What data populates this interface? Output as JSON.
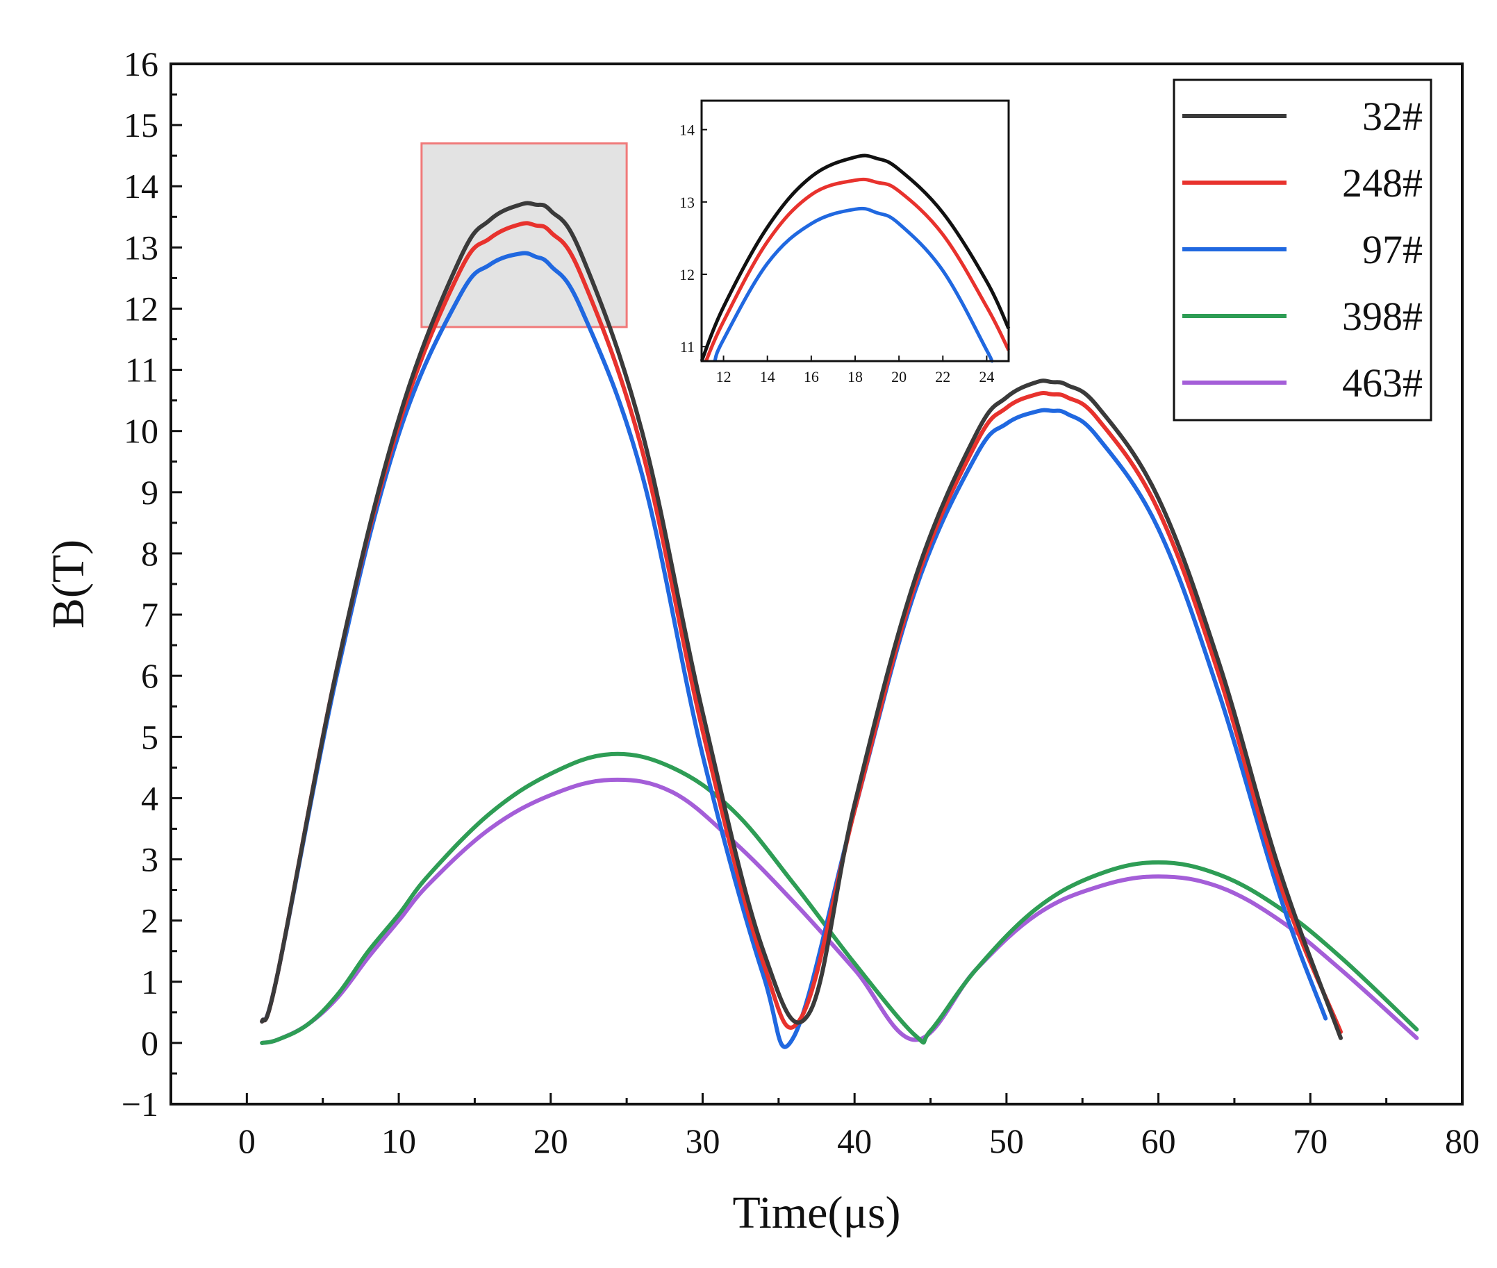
{
  "chart_data": {
    "type": "line",
    "xlabel": "Time(μs)",
    "ylabel": "B(T)",
    "xlim": [
      -5,
      80
    ],
    "ylim": [
      -1,
      16
    ],
    "xticks": [
      0,
      10,
      20,
      30,
      40,
      50,
      60,
      70,
      80
    ],
    "yticks": [
      -1,
      0,
      1,
      2,
      3,
      4,
      5,
      6,
      7,
      8,
      9,
      10,
      11,
      12,
      13,
      14,
      15,
      16
    ],
    "xtick_labels": [
      "0",
      "10",
      "20",
      "30",
      "40",
      "50",
      "60",
      "70",
      "80"
    ],
    "ytick_labels": [
      "−1",
      "0",
      "1",
      "2",
      "3",
      "4",
      "5",
      "6",
      "7",
      "8",
      "9",
      "10",
      "11",
      "12",
      "13",
      "14",
      "15",
      "16"
    ],
    "legend_position": "top-right",
    "series": [
      {
        "name": "32#",
        "color": "#3a3a3a",
        "x": [
          1,
          2,
          6,
          10,
          14,
          16,
          18,
          19,
          20,
          22,
          26,
          30,
          34,
          37,
          40,
          44,
          48,
          50,
          52,
          53,
          54,
          56,
          60,
          64,
          68,
          72
        ],
        "y": [
          0.35,
          1.1,
          6.2,
          10.2,
          12.8,
          13.45,
          13.7,
          13.7,
          13.6,
          12.9,
          10.0,
          5.4,
          1.5,
          0.48,
          3.9,
          7.6,
          9.95,
          10.55,
          10.8,
          10.8,
          10.75,
          10.4,
          8.9,
          6.2,
          2.8,
          0.08
        ]
      },
      {
        "name": "248#",
        "color": "#e8322d",
        "x": [
          1,
          2,
          6,
          10,
          14,
          16,
          18,
          19,
          20,
          22,
          26,
          30,
          34,
          36.5,
          40,
          44,
          48,
          50,
          52,
          53,
          54,
          56,
          60,
          64,
          68,
          72
        ],
        "y": [
          0.35,
          1.1,
          6.2,
          10.1,
          12.6,
          13.15,
          13.38,
          13.36,
          13.25,
          12.55,
          9.7,
          5.1,
          1.3,
          0.42,
          3.8,
          7.5,
          9.8,
          10.38,
          10.6,
          10.6,
          10.55,
          10.2,
          8.7,
          6.0,
          2.6,
          0.18
        ]
      },
      {
        "name": "97#",
        "color": "#2068e0",
        "x": [
          1,
          2,
          6,
          10,
          14,
          16,
          18,
          19,
          20,
          22,
          26,
          30,
          34,
          36,
          40,
          44,
          48,
          50,
          52,
          53,
          54,
          56,
          60,
          64,
          68,
          71
        ],
        "y": [
          0.35,
          1.1,
          6.1,
          9.95,
          12.2,
          12.72,
          12.9,
          12.85,
          12.7,
          12.0,
          9.3,
          4.7,
          1.1,
          0.1,
          3.8,
          7.4,
          9.6,
          10.12,
          10.32,
          10.33,
          10.28,
          9.9,
          8.4,
          5.7,
          2.4,
          0.4
        ]
      },
      {
        "name": "398#",
        "color": "#2e9d55",
        "x": [
          1,
          2,
          4,
          6,
          8,
          10,
          12,
          16,
          20,
          24,
          28,
          32,
          36,
          40,
          44,
          45,
          48,
          52,
          56,
          60,
          64,
          68,
          72,
          77
        ],
        "y": [
          0.0,
          0.05,
          0.3,
          0.8,
          1.5,
          2.1,
          2.75,
          3.75,
          4.4,
          4.72,
          4.5,
          3.8,
          2.6,
          1.3,
          0.12,
          0.2,
          1.2,
          2.2,
          2.75,
          2.95,
          2.75,
          2.2,
          1.4,
          0.22
        ]
      },
      {
        "name": "463#",
        "color": "#a45ed8",
        "x": [
          1,
          2,
          4,
          6,
          8,
          10,
          12,
          16,
          20,
          24,
          28,
          32,
          36,
          40,
          44,
          48,
          52,
          56,
          60,
          64,
          68,
          72,
          77
        ],
        "y": [
          0.0,
          0.05,
          0.3,
          0.75,
          1.4,
          2.0,
          2.6,
          3.5,
          4.05,
          4.3,
          4.1,
          3.3,
          2.3,
          1.2,
          0.05,
          1.2,
          2.1,
          2.55,
          2.72,
          2.55,
          2.0,
          1.2,
          0.08
        ]
      }
    ],
    "highlight_box": {
      "x": [
        11.5,
        25
      ],
      "y": [
        11.7,
        14.7
      ]
    },
    "inset": {
      "xlim": [
        11,
        25
      ],
      "ylim": [
        10.8,
        14.4
      ],
      "xticks": [
        12,
        14,
        16,
        18,
        20,
        22,
        24
      ],
      "yticks": [
        11,
        12,
        13,
        14
      ],
      "xtick_labels": [
        "12",
        "14",
        "16",
        "18",
        "20",
        "22",
        "24"
      ],
      "ytick_labels": [
        "11",
        "12",
        "13",
        "14"
      ],
      "series": [
        {
          "name": "32#",
          "color": "#111111",
          "x": [
            11,
            12,
            14,
            16,
            18,
            19,
            20,
            22,
            24,
            25
          ],
          "y": [
            10.8,
            11.55,
            12.65,
            13.35,
            13.62,
            13.6,
            13.45,
            12.85,
            11.9,
            11.25
          ]
        },
        {
          "name": "248#",
          "color": "#e8322d",
          "x": [
            11.2,
            12,
            14,
            16,
            18,
            19,
            20,
            22,
            24,
            25
          ],
          "y": [
            10.8,
            11.35,
            12.45,
            13.1,
            13.3,
            13.27,
            13.15,
            12.55,
            11.55,
            10.95
          ]
        },
        {
          "name": "97#",
          "color": "#2068e0",
          "x": [
            11.6,
            12,
            14,
            16,
            18,
            19,
            20,
            22,
            24,
            24.2
          ],
          "y": [
            10.8,
            11.1,
            12.15,
            12.7,
            12.9,
            12.85,
            12.7,
            12.05,
            10.95,
            10.8
          ]
        }
      ]
    }
  }
}
